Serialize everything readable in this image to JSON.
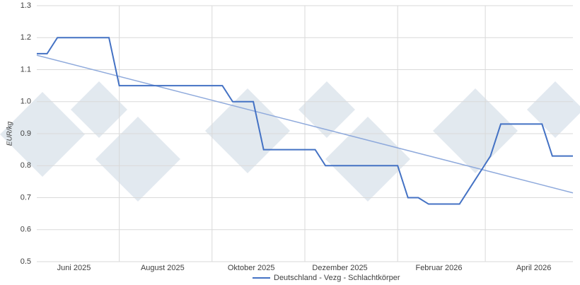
{
  "chart_data": {
    "type": "line",
    "y_label": "EUR/kg",
    "x": [
      0,
      1,
      2,
      3,
      4,
      5,
      6,
      7,
      8,
      9,
      10,
      11,
      12,
      13,
      14,
      15,
      16,
      17,
      18,
      19,
      20,
      21,
      22,
      23,
      24,
      25,
      26,
      27,
      28,
      29,
      30,
      31,
      32,
      33,
      34,
      35,
      36,
      37,
      38,
      39,
      40,
      41,
      42,
      43,
      44,
      45,
      46,
      47,
      48,
      49,
      50,
      51,
      52
    ],
    "xlim": [
      0,
      52
    ],
    "xticks": [
      {
        "value": 3.6,
        "label": "Juni 2025"
      },
      {
        "value": 12.2,
        "label": "August 2025"
      },
      {
        "value": 20.8,
        "label": "Oktober 2025"
      },
      {
        "value": 29.4,
        "label": "Dezember 2025"
      },
      {
        "value": 39,
        "label": "Februar 2026"
      },
      {
        "value": 48.2,
        "label": "April 2026"
      }
    ],
    "x_gridlines": [
      8,
      17,
      26,
      35,
      43.5
    ],
    "ylim": [
      0.5,
      1.3
    ],
    "yticks": [
      0.5,
      0.6,
      0.7,
      0.8,
      0.9,
      {
        "value": 1,
        "label": "1.0"
      },
      1.1,
      1.2,
      1.3
    ],
    "grid": true,
    "legend": "bottom",
    "series": [
      {
        "name": "Deutschland - Vezg - Schlachtkörper",
        "color": "#4472c4",
        "values": [
          1.15,
          1.15,
          1.2,
          1.2,
          1.2,
          1.2,
          1.2,
          1.2,
          1.05,
          1.05,
          1.05,
          1.05,
          1.05,
          1.05,
          1.05,
          1.05,
          1.05,
          1.05,
          1.05,
          1,
          1,
          1,
          0.85,
          0.85,
          0.85,
          0.85,
          0.85,
          0.85,
          0.8,
          0.8,
          0.8,
          0.8,
          0.8,
          0.8,
          0.8,
          0.8,
          0.7,
          0.7,
          0.68,
          0.68,
          0.68,
          0.68,
          0.73,
          0.78,
          0.83,
          0.93,
          0.93,
          0.93,
          0.93,
          0.93,
          0.83,
          0.83,
          0.83
        ]
      }
    ],
    "trend": {
      "color": "#8faadc",
      "x": [
        0,
        52
      ],
      "values": [
        1.145,
        0.715
      ]
    }
  }
}
